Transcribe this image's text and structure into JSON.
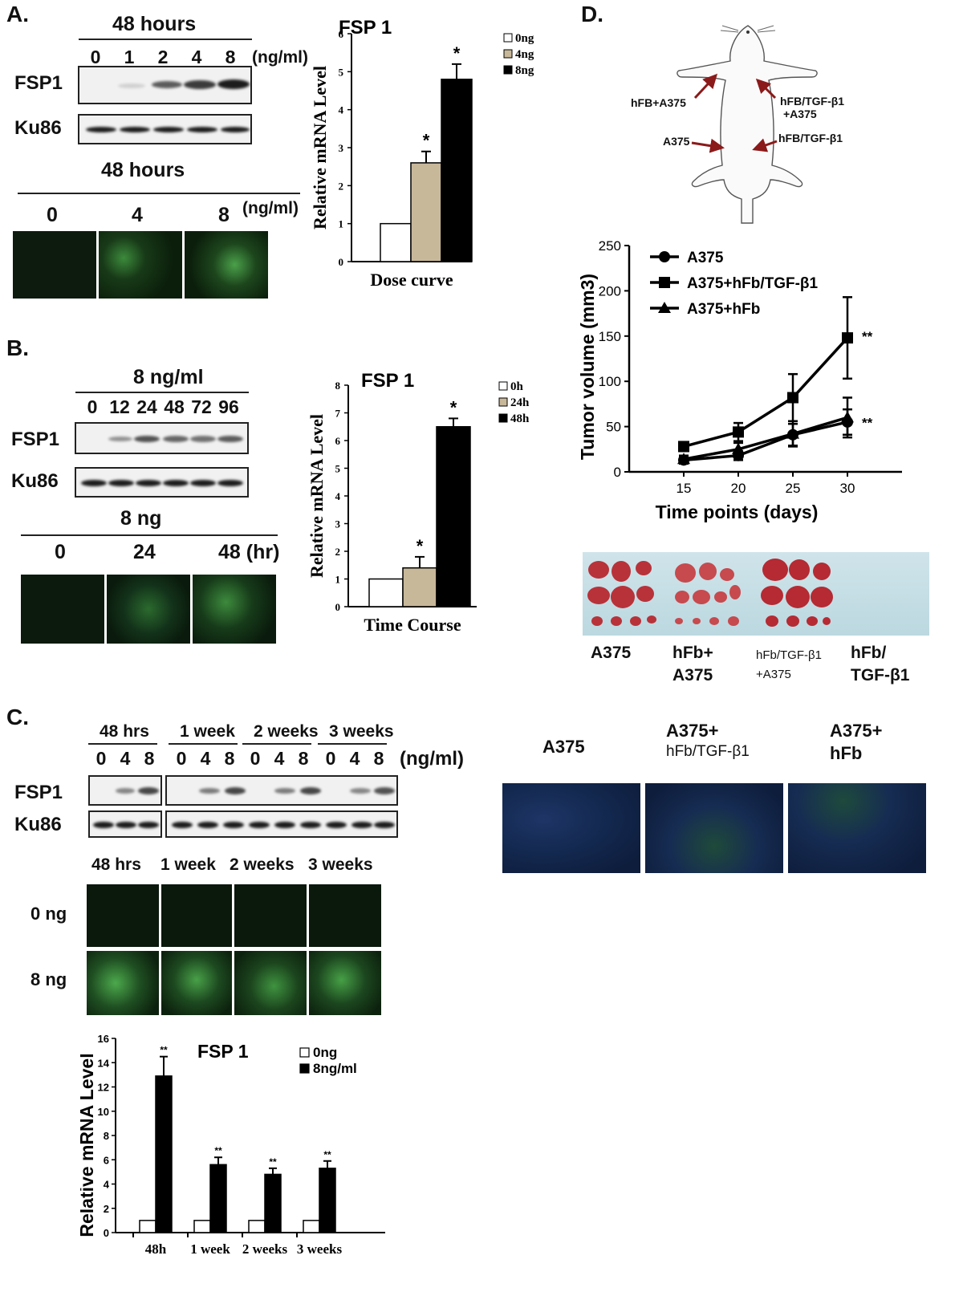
{
  "panelA": {
    "letter": "A.",
    "blot_header": "48 hours",
    "doses": [
      "0",
      "1",
      "2",
      "4",
      "8"
    ],
    "dose_unit": "(ng/ml)",
    "row_fsp1": "FSP1",
    "row_ku86": "Ku86",
    "fluor_header": "48 hours",
    "fluor_doses": [
      "0",
      "4",
      "8"
    ],
    "fluor_unit": "(ng/ml)"
  },
  "panelB": {
    "letter": "B.",
    "blot_header": "8 ng/ml",
    "times": [
      "0",
      "12",
      "24",
      "48",
      "72",
      "96"
    ],
    "row_fsp1": "FSP1",
    "row_ku86": "Ku86",
    "fluor_header": "8 ng",
    "fluor_times": [
      "0",
      "24",
      "48 (hr)"
    ]
  },
  "panelC": {
    "letter": "C.",
    "groups": [
      "48 hrs",
      "1 week",
      "2 weeks",
      "3 weeks"
    ],
    "doses": [
      "0",
      "4",
      "8"
    ],
    "dose_unit": "(ng/ml)",
    "row_fsp1": "FSP1",
    "row_ku86": "Ku86",
    "fluor_groups": [
      "48 hrs",
      "1 week",
      "2 weeks",
      "3 weeks"
    ],
    "fluor_rows": [
      "0 ng",
      "8 ng"
    ]
  },
  "panelD": {
    "letter": "D.",
    "mouse_labels": [
      "hFB+A375",
      "hFB/TGF-β1",
      "+A375",
      "A375",
      "hFB/TGF-β1"
    ],
    "tumor_labels": [
      {
        "line1": "A375",
        "line2": ""
      },
      {
        "line1": "hFb+",
        "line2": "A375"
      },
      {
        "line1": "hFb/TGF-β1",
        "line2": "+A375"
      },
      {
        "line1": "hFb/",
        "line2": "TGF-β1"
      }
    ],
    "ihc_labels": [
      {
        "line1": "A375",
        "line2": ""
      },
      {
        "line1": "A375+",
        "line2": "hFb/TGF-β1"
      },
      {
        "line1": "A375+",
        "line2": "hFb"
      }
    ]
  },
  "chart_data": [
    {
      "id": "chartA",
      "type": "bar",
      "title": "FSP 1",
      "xlabel": "Dose curve",
      "ylabel": "Relative mRNA Level",
      "ylim": [
        0,
        6
      ],
      "yticks": [
        0,
        1,
        2,
        3,
        4,
        5,
        6
      ],
      "categories": [
        "0ng",
        "4ng",
        "8ng"
      ],
      "legend": [
        "0ng",
        "4ng",
        "8ng"
      ],
      "values": [
        1.0,
        2.6,
        4.8
      ],
      "errors": [
        0,
        0.3,
        0.4
      ],
      "sig": [
        "",
        "*",
        "*"
      ],
      "colors": [
        "#ffffff",
        "#c8b89a",
        "#000000"
      ]
    },
    {
      "id": "chartB",
      "type": "bar",
      "title": "FSP 1",
      "xlabel": "Time Course",
      "ylabel": "Relative mRNA Level",
      "ylim": [
        0,
        8
      ],
      "yticks": [
        0,
        1,
        2,
        3,
        4,
        5,
        6,
        7,
        8
      ],
      "categories": [
        "0h",
        "24h",
        "48h"
      ],
      "legend": [
        "0h",
        "24h",
        "48h"
      ],
      "values": [
        1.0,
        1.4,
        6.5
      ],
      "errors": [
        0,
        0.4,
        0.3
      ],
      "sig": [
        "",
        "*",
        "*"
      ],
      "colors": [
        "#ffffff",
        "#c8b89a",
        "#000000"
      ]
    },
    {
      "id": "chartC",
      "type": "bar",
      "title": "FSP 1",
      "xlabel": "",
      "ylabel": "Relative mRNA Level",
      "ylim": [
        0,
        16
      ],
      "yticks": [
        0,
        2,
        4,
        6,
        8,
        10,
        12,
        14,
        16
      ],
      "categories": [
        "48h",
        "1 week",
        "2 weeks",
        "3 weeks"
      ],
      "series": [
        {
          "name": "0ng",
          "values": [
            1,
            1,
            1,
            1
          ],
          "color": "#ffffff"
        },
        {
          "name": "8ng/ml",
          "values": [
            12.9,
            5.6,
            4.8,
            5.3
          ],
          "errors": [
            1.6,
            0.6,
            0.5,
            0.6
          ],
          "color": "#000000"
        }
      ],
      "sig": [
        "**",
        "**",
        "**",
        "**"
      ]
    },
    {
      "id": "chartD",
      "type": "line",
      "title": "",
      "xlabel": "Time points (days)",
      "ylabel": "Tumor volume (mm3)",
      "xlim": [
        10,
        35
      ],
      "ylim": [
        0,
        250
      ],
      "xticks": [
        15,
        20,
        25,
        30
      ],
      "yticks": [
        0,
        50,
        100,
        150,
        200,
        250
      ],
      "x": [
        15,
        20,
        25,
        30
      ],
      "series": [
        {
          "name": "A375",
          "marker": "circle",
          "values": [
            13,
            18,
            41,
            55
          ],
          "errors": [
            4,
            5,
            12,
            14
          ]
        },
        {
          "name": "A375+hFb/TGF-β1",
          "marker": "square",
          "values": [
            28,
            44,
            82,
            148
          ],
          "errors": [
            5,
            10,
            26,
            45
          ]
        },
        {
          "name": "A375+hFb",
          "marker": "triangle",
          "values": [
            14,
            25,
            42,
            60
          ],
          "errors": [
            4,
            7,
            14,
            22
          ]
        }
      ],
      "sig": [
        "**",
        "**"
      ]
    }
  ]
}
